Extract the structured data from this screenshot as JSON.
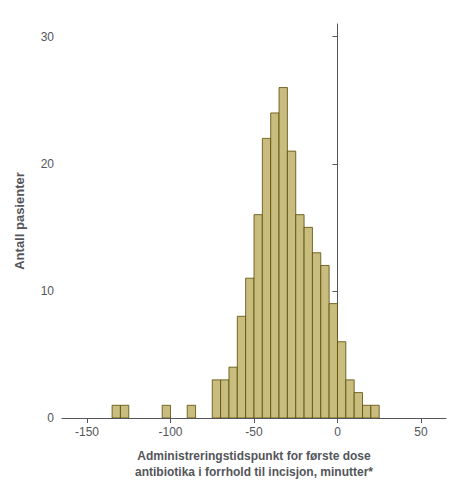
{
  "chart_data": {
    "type": "histogram",
    "bins": [
      -140,
      -135,
      -130,
      -125,
      -120,
      -115,
      -110,
      -105,
      -100,
      -95,
      -90,
      -85,
      -80,
      -75,
      -70,
      -65,
      -60,
      -55,
      -50,
      -45,
      -40,
      -35,
      -30,
      -25,
      -20,
      -15,
      -10,
      -5,
      0,
      5,
      10,
      15,
      20,
      25
    ],
    "values": [
      0,
      1,
      1,
      0,
      0,
      0,
      0,
      1,
      0,
      0,
      1,
      0,
      0,
      3,
      3,
      4,
      8,
      11,
      16,
      22,
      24,
      26,
      21,
      16,
      15,
      13,
      12,
      9,
      6,
      3,
      2,
      1,
      1
    ],
    "color": "#c8bc7e",
    "xlabel": "Administreringstidspunkt for første dose\nantibiotika i forrhold til incisjon, minutter*",
    "ylabel": "Antall pasienter",
    "xlim": [
      -165,
      65
    ],
    "ylim": [
      0,
      31
    ],
    "xticks": [
      -150,
      -100,
      -50,
      0,
      50
    ],
    "yticks": [
      0,
      10,
      20,
      30
    ],
    "grid": false
  }
}
